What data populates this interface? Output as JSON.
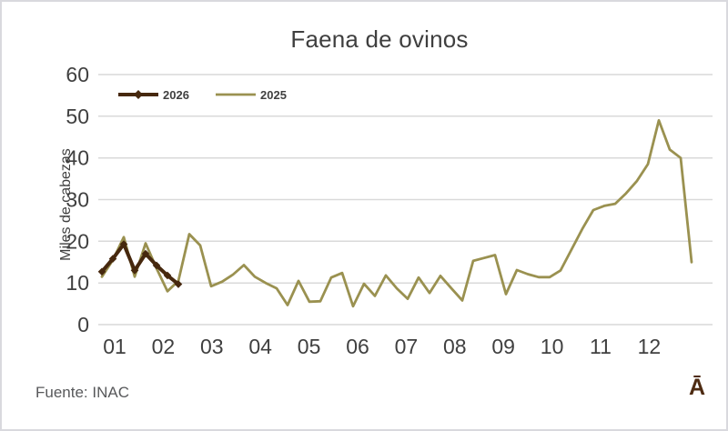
{
  "page": {
    "title": "Faena de ovinos"
  },
  "footer": {
    "source": "Fuente: INAC",
    "mark": "Ā"
  },
  "colors": {
    "series_2026": "#46280e",
    "series_2025": "#9a9150",
    "axis_text": "#404040",
    "title_text": "#3f3f3f",
    "gridline": "#d9d9d9",
    "source_text": "#58595b",
    "mark_text": "#4e2b12",
    "border": "#d9d9de"
  },
  "chart_data": {
    "type": "line",
    "title": "Faena de ovinos",
    "xlabel": "",
    "ylabel": "Miles de cabezas",
    "categories": [
      "01",
      "02",
      "03",
      "04",
      "05",
      "06",
      "07",
      "08",
      "09",
      "10",
      "11",
      "12"
    ],
    "x_unit": "week of year (weekly slaughter data, ~55 points across months 01-12)",
    "ylim": [
      0,
      60
    ],
    "y_ticks": [
      0,
      10,
      20,
      30,
      40,
      50,
      60
    ],
    "grid": "horizontal",
    "legend_position": "top-left-inside",
    "series": [
      {
        "name": "2026",
        "color": "#46280e",
        "marker": "diamond",
        "line_width": 4,
        "values": [
          12.7,
          15.8,
          19.3,
          13,
          17,
          14.2,
          11.8,
          9.7
        ]
      },
      {
        "name": "2025",
        "color": "#9a9150",
        "marker": "none",
        "line_width": 2.8,
        "values": [
          11.5,
          15.5,
          21,
          11.5,
          19.5,
          13.5,
          8,
          10.5,
          21.7,
          19,
          9.2,
          10.3,
          12,
          14.3,
          11.5,
          10,
          8.7,
          4.7,
          10.5,
          5.5,
          5.6,
          11.3,
          12.4,
          4.4,
          9.8,
          6.9,
          11.8,
          8.7,
          6.2,
          11.3,
          7.6,
          11.7,
          8.7,
          5.8,
          15.3,
          16,
          16.7,
          7.3,
          13.1,
          12.1,
          11.4,
          11.4,
          13,
          18,
          23,
          27.5,
          28.5,
          29,
          31.5,
          34.5,
          38.5,
          49,
          42,
          40,
          15
        ]
      }
    ]
  }
}
